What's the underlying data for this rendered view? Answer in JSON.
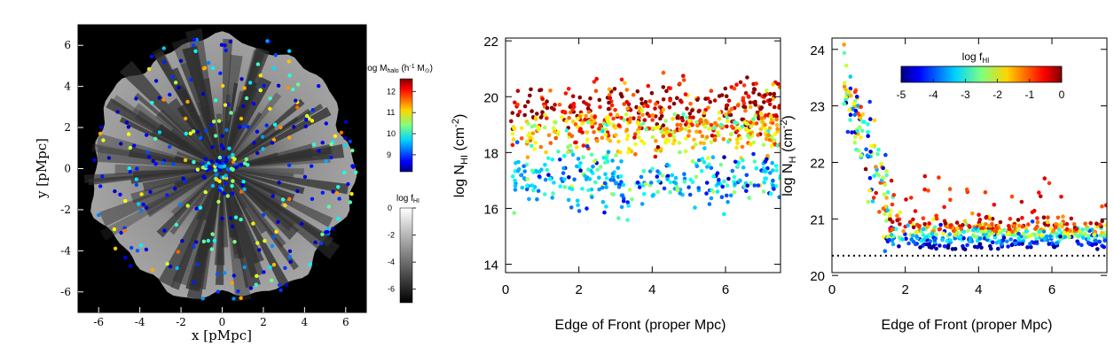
{
  "chart_data": [
    {
      "type": "scatter",
      "panel": "map",
      "xlabel": "x [pMpc]",
      "ylabel": "y [pMpc]",
      "xlim": [
        -7,
        7
      ],
      "ylim": [
        -7,
        7
      ],
      "xticks": [
        "-6",
        "-4",
        "-2",
        "0",
        "2",
        "4",
        "6"
      ],
      "yticks": [
        "6",
        "4",
        "2",
        "0",
        "-2",
        "-4",
        "-6"
      ],
      "background": "log fHI grayscale map",
      "colorbar_halo": {
        "label_main": "log M",
        "label_sub": "halo",
        "label_units": " (h",
        "label_exp": "-1",
        "label_units2": " M",
        "label_sun": "⊙",
        "label_close": ")",
        "ticks": [
          "12",
          "11",
          "10",
          "9"
        ],
        "range": [
          8.2,
          12.6
        ]
      },
      "colorbar_fhi": {
        "label_main": "log f",
        "label_sub": "HI",
        "ticks": [
          "0",
          "-2",
          "-4",
          "-6"
        ],
        "range": [
          -7,
          0
        ]
      },
      "colors": {
        "frame": "#000000",
        "map_light": "#9c9c9c",
        "map_dark": "#3c3c3c"
      }
    },
    {
      "type": "scatter",
      "panel": "NHI",
      "xlabel": "Edge of Front (proper Mpc)",
      "ylabel_main": "log N",
      "ylabel_sub": "HI",
      "ylabel_units": " (cm",
      "ylabel_exp": "-2",
      "ylabel_close": ")",
      "xlim": [
        0,
        7.5
      ],
      "ylim": [
        13.7,
        22.1
      ],
      "xticks": [
        "0",
        "2",
        "4",
        "6"
      ],
      "yticks": [
        "14",
        "16",
        "18",
        "20",
        "22"
      ],
      "colour_by": "log fHI",
      "bands": [
        {
          "name": "",
          "y_center": 19.6,
          "y_spread": 0.45,
          "fhi": -0.4
        },
        {
          "name": "",
          "y_center": 18.7,
          "y_spread": 0.4,
          "fhi": -1.7
        },
        {
          "name": "",
          "y_center": 17.0,
          "y_spread": 0.45,
          "fhi": -3.5
        }
      ]
    },
    {
      "type": "scatter",
      "panel": "NH",
      "xlabel": "Edge of Front (proper Mpc)",
      "ylabel_main": "log N",
      "ylabel_sub": "H",
      "ylabel_units": " (cm",
      "ylabel_exp": "-2",
      "ylabel_close": ")",
      "xlim": [
        0,
        7.5
      ],
      "ylim": [
        20.05,
        24.2
      ],
      "xticks": [
        "0",
        "2",
        "4",
        "6"
      ],
      "yticks": [
        "20",
        "21",
        "22",
        "23",
        "24"
      ],
      "reference_line_y": 20.35,
      "colorbar": {
        "label_main": "log f",
        "label_sub": "HI",
        "ticks": [
          "-5",
          "-4",
          "-3",
          "-2",
          "-1",
          "0"
        ],
        "range": [
          -5,
          0
        ]
      }
    }
  ]
}
